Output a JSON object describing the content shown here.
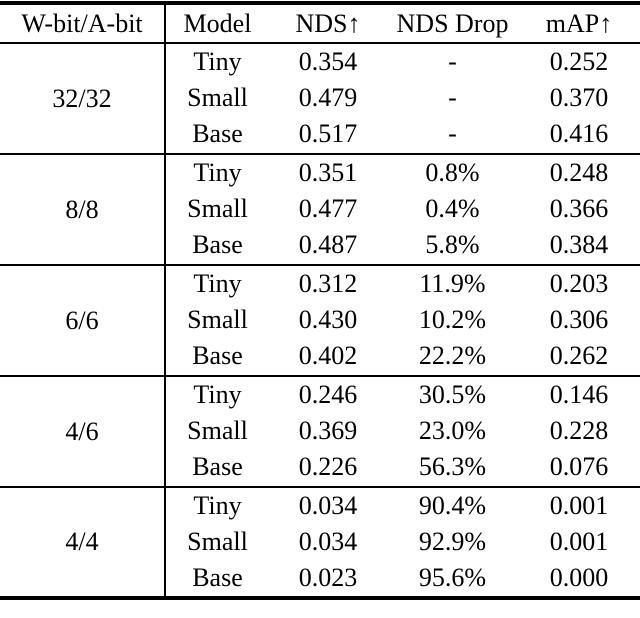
{
  "table": {
    "headers": [
      "W-bit/A-bit",
      "Model",
      "NDS↑",
      "NDS Drop",
      "mAP↑"
    ],
    "groups": [
      {
        "bits": "32/32",
        "rows": [
          [
            "Tiny",
            "0.354",
            "-",
            "0.252"
          ],
          [
            "Small",
            "0.479",
            "-",
            "0.370"
          ],
          [
            "Base",
            "0.517",
            "-",
            "0.416"
          ]
        ]
      },
      {
        "bits": "8/8",
        "rows": [
          [
            "Tiny",
            "0.351",
            "0.8%",
            "0.248"
          ],
          [
            "Small",
            "0.477",
            "0.4%",
            "0.366"
          ],
          [
            "Base",
            "0.487",
            "5.8%",
            "0.384"
          ]
        ]
      },
      {
        "bits": "6/6",
        "rows": [
          [
            "Tiny",
            "0.312",
            "11.9%",
            "0.203"
          ],
          [
            "Small",
            "0.430",
            "10.2%",
            "0.306"
          ],
          [
            "Base",
            "0.402",
            "22.2%",
            "0.262"
          ]
        ]
      },
      {
        "bits": "4/6",
        "rows": [
          [
            "Tiny",
            "0.246",
            "30.5%",
            "0.146"
          ],
          [
            "Small",
            "0.369",
            "23.0%",
            "0.228"
          ],
          [
            "Base",
            "0.226",
            "56.3%",
            "0.076"
          ]
        ]
      },
      {
        "bits": "4/4",
        "rows": [
          [
            "Tiny",
            "0.034",
            "90.4%",
            "0.001"
          ],
          [
            "Small",
            "0.034",
            "92.9%",
            "0.001"
          ],
          [
            "Base",
            "0.023",
            "95.6%",
            "0.000"
          ]
        ]
      }
    ]
  },
  "chart_data": {
    "type": "table",
    "columns": [
      "W-bit/A-bit",
      "Model",
      "NDS↑",
      "NDS Drop",
      "mAP↑"
    ],
    "rows": [
      [
        "32/32",
        "Tiny",
        "0.354",
        "-",
        "0.252"
      ],
      [
        "32/32",
        "Small",
        "0.479",
        "-",
        "0.370"
      ],
      [
        "32/32",
        "Base",
        "0.517",
        "-",
        "0.416"
      ],
      [
        "8/8",
        "Tiny",
        "0.351",
        "0.8%",
        "0.248"
      ],
      [
        "8/8",
        "Small",
        "0.477",
        "0.4%",
        "0.366"
      ],
      [
        "8/8",
        "Base",
        "0.487",
        "5.8%",
        "0.384"
      ],
      [
        "6/6",
        "Tiny",
        "0.312",
        "11.9%",
        "0.203"
      ],
      [
        "6/6",
        "Small",
        "0.430",
        "10.2%",
        "0.306"
      ],
      [
        "6/6",
        "Base",
        "0.402",
        "22.2%",
        "0.262"
      ],
      [
        "4/6",
        "Tiny",
        "0.246",
        "30.5%",
        "0.146"
      ],
      [
        "4/6",
        "Small",
        "0.369",
        "23.0%",
        "0.228"
      ],
      [
        "4/6",
        "Base",
        "0.226",
        "56.3%",
        "0.076"
      ],
      [
        "4/4",
        "Tiny",
        "0.034",
        "90.4%",
        "0.001"
      ],
      [
        "4/4",
        "Small",
        "0.034",
        "92.9%",
        "0.001"
      ],
      [
        "4/4",
        "Base",
        "0.023",
        "95.6%",
        "0.000"
      ]
    ]
  },
  "colors": {
    "text": "#000000",
    "background": "#ffffff",
    "rule": "#000000"
  }
}
